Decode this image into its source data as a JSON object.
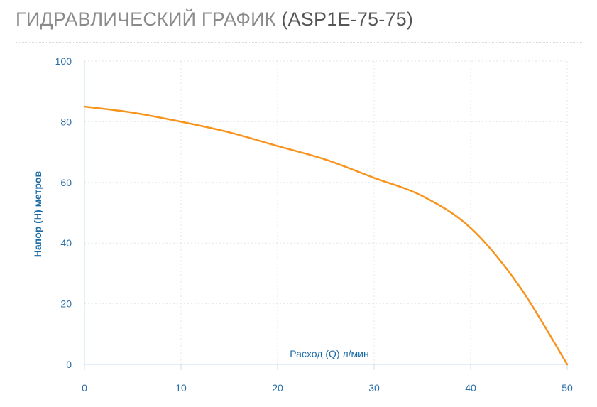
{
  "header": {
    "title": "ГИДРАВЛИЧЕСКИЙ ГРАФИК",
    "model": "(ASP1E-75-75)"
  },
  "colors": {
    "line": "#f7941d",
    "axis_text": "#2a6fa8",
    "grid": "#e6e6e6",
    "axis": "#c5dff0"
  },
  "chart_data": {
    "type": "line",
    "title": "",
    "xlabel": "Расход (Q) л/мин",
    "ylabel": "Напор (H) метров",
    "xlim": [
      0,
      50
    ],
    "ylim": [
      0,
      100
    ],
    "x_ticks": [
      "0",
      "10",
      "20",
      "30",
      "40",
      "50"
    ],
    "y_ticks": [
      "0",
      "20",
      "40",
      "60",
      "80",
      "100"
    ],
    "grid": true,
    "series": [
      {
        "x": [
          0,
          5,
          10,
          15,
          20,
          25,
          30,
          35,
          40,
          45,
          50
        ],
        "y": [
          85,
          83,
          80,
          76.5,
          72,
          67.5,
          61.5,
          55.5,
          45,
          26,
          0
        ]
      }
    ]
  }
}
